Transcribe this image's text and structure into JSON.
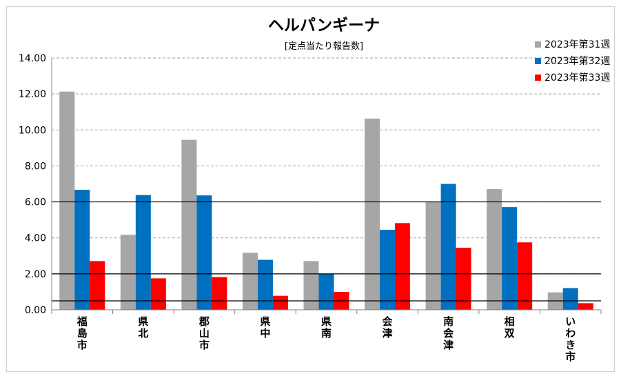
{
  "chart_data": {
    "type": "bar",
    "title": "ヘルパンギーナ",
    "subtitle": "[定点当たり報告数]",
    "categories": [
      "福島市",
      "県北",
      "郡山市",
      "県中",
      "県南",
      "会津",
      "南会津",
      "相双",
      "いわき市"
    ],
    "series": [
      {
        "name": "2023年第31週",
        "color": "#a6a6a6",
        "values": [
          12.13,
          4.17,
          9.45,
          3.17,
          2.71,
          10.63,
          6.0,
          6.71,
          0.97
        ]
      },
      {
        "name": "2023年第32週",
        "color": "#0070c0",
        "values": [
          6.67,
          6.38,
          6.36,
          2.78,
          2.0,
          4.45,
          7.0,
          5.71,
          1.21
        ]
      },
      {
        "name": "2023年第33週",
        "color": "#ff0000",
        "values": [
          2.71,
          1.75,
          1.82,
          0.78,
          1.0,
          4.82,
          3.45,
          3.75,
          0.37
        ]
      }
    ],
    "ylim": [
      0,
      14
    ],
    "yticks": [
      "0.00",
      "2.00",
      "4.00",
      "6.00",
      "8.00",
      "10.00",
      "12.00",
      "14.00"
    ],
    "reference_lines": [
      0.5,
      2.0,
      6.0
    ],
    "grid": true,
    "legend_position": "top-right"
  }
}
